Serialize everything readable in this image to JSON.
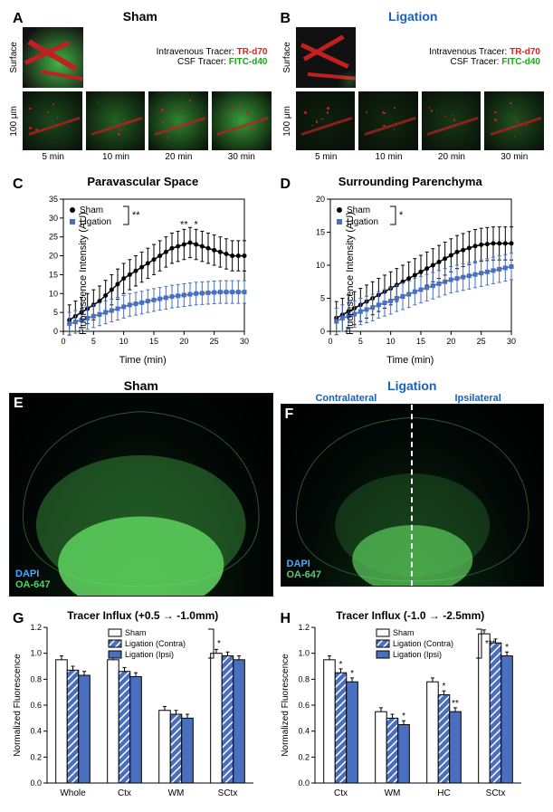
{
  "A": {
    "label": "A",
    "title": "Sham",
    "rows": [
      "Surface",
      "100 μm"
    ],
    "tracers": {
      "iv_label": "Intravenous Tracer:",
      "iv_val": "TR-d70",
      "csf_label": "CSF Tracer:",
      "csf_val": "FITC-d40"
    },
    "times": [
      "5 min",
      "10 min",
      "20 min",
      "30 min"
    ]
  },
  "B": {
    "label": "B",
    "title": "Ligation",
    "rows": [
      "Surface",
      "100 μm"
    ],
    "tracers": {
      "iv_label": "Intravenous Tracer:",
      "iv_val": "TR-d70",
      "csf_label": "CSF Tracer:",
      "csf_val": "FITC-d40"
    },
    "times": [
      "5 min",
      "10 min",
      "20 min",
      "30 min"
    ]
  },
  "C": {
    "label": "C",
    "title": "Paravascular Space",
    "ylabel": "Fluorescence Intensity (AU)",
    "xlabel": "Time (min)",
    "ylim": [
      0,
      35
    ],
    "ytick_step": 5,
    "xlim": [
      0,
      30
    ],
    "xtick_step": 5,
    "legend": [
      "Sham",
      "Ligation"
    ],
    "bracket_sig": "**",
    "point_sigs": [
      {
        "x": 20,
        "s": "**"
      },
      {
        "x": 22,
        "s": "*"
      }
    ],
    "sham": {
      "x": [
        1,
        2,
        3,
        4,
        5,
        6,
        7,
        8,
        9,
        10,
        11,
        12,
        13,
        14,
        15,
        16,
        17,
        18,
        19,
        20,
        21,
        22,
        23,
        24,
        25,
        26,
        27,
        28,
        29,
        30
      ],
      "y": [
        3,
        4,
        5,
        6,
        7,
        8,
        9.5,
        11,
        12.5,
        14,
        15,
        16,
        17,
        18,
        19,
        20,
        21,
        22,
        22.5,
        23,
        23.5,
        23,
        22.5,
        22,
        21.5,
        21,
        20.5,
        20,
        20,
        20
      ],
      "err": 4,
      "color": "#000000"
    },
    "ligation": {
      "x": [
        1,
        2,
        3,
        4,
        5,
        6,
        7,
        8,
        9,
        10,
        11,
        12,
        13,
        14,
        15,
        16,
        17,
        18,
        19,
        20,
        21,
        22,
        23,
        24,
        25,
        26,
        27,
        28,
        29,
        30
      ],
      "y": [
        2,
        2.5,
        3,
        3.5,
        4,
        4.5,
        5,
        5.5,
        6,
        6.5,
        7,
        7.3,
        7.6,
        8,
        8.3,
        8.6,
        8.9,
        9.2,
        9.4,
        9.6,
        9.8,
        10,
        10.1,
        10.2,
        10.3,
        10.4,
        10.4,
        10.4,
        10.4,
        10.4
      ],
      "err": 3,
      "color": "#4a6fbf"
    }
  },
  "D": {
    "label": "D",
    "title": "Surrounding Parenchyma",
    "ylabel": "Fluorescence Intensity (AU)",
    "xlabel": "Time (min)",
    "ylim": [
      0,
      20
    ],
    "ytick_step": 5,
    "xlim": [
      0,
      30
    ],
    "xtick_step": 5,
    "legend": [
      "Sham",
      "Ligation"
    ],
    "bracket_sig": "*",
    "sham": {
      "x": [
        1,
        2,
        3,
        4,
        5,
        6,
        7,
        8,
        9,
        10,
        11,
        12,
        13,
        14,
        15,
        16,
        17,
        18,
        19,
        20,
        21,
        22,
        23,
        24,
        25,
        26,
        27,
        28,
        29,
        30
      ],
      "y": [
        2,
        2.5,
        3,
        3.5,
        4,
        4.5,
        5,
        5.5,
        6,
        6.5,
        7,
        7.5,
        8,
        8.5,
        9,
        9.5,
        10,
        10.5,
        11,
        11.5,
        12,
        12.3,
        12.6,
        12.9,
        13.1,
        13.2,
        13.3,
        13.3,
        13.3,
        13.3
      ],
      "err": 2.5,
      "color": "#000000"
    },
    "ligation": {
      "x": [
        1,
        2,
        3,
        4,
        5,
        6,
        7,
        8,
        9,
        10,
        11,
        12,
        13,
        14,
        15,
        16,
        17,
        18,
        19,
        20,
        21,
        22,
        23,
        24,
        25,
        26,
        27,
        28,
        29,
        30
      ],
      "y": [
        1.5,
        2,
        2.3,
        2.6,
        3,
        3.3,
        3.6,
        4,
        4.3,
        4.6,
        5,
        5.3,
        5.6,
        6,
        6.3,
        6.6,
        6.9,
        7.2,
        7.5,
        7.8,
        8,
        8.2,
        8.4,
        8.6,
        8.8,
        9,
        9.2,
        9.4,
        9.6,
        9.8
      ],
      "err": 2,
      "color": "#4a6fbf"
    }
  },
  "E": {
    "label": "E",
    "title": "Sham",
    "stain1": "DAPI",
    "stain2": "OA-647"
  },
  "F": {
    "label": "F",
    "title": "Ligation",
    "left_sub": "Contralateral",
    "right_sub": "Ipsilateral",
    "stain1": "DAPI",
    "stain2": "OA-647"
  },
  "G": {
    "label": "G",
    "title": "Tracer Influx (+0.5 → -1.0mm)",
    "ylabel": "Normalized Fluorescence",
    "ylim": [
      0.0,
      1.2
    ],
    "ytick_step": 0.2,
    "legend": [
      "Sham",
      "Ligation (Contra)",
      "Ligation (Ipsi)"
    ],
    "bracket_sig": "*",
    "categories": [
      "Whole",
      "Ctx",
      "WM",
      "SCtx"
    ],
    "sham": [
      0.95,
      0.95,
      0.56,
      1.0
    ],
    "contra": [
      0.87,
      0.86,
      0.53,
      0.98
    ],
    "ipsi": [
      0.83,
      0.82,
      0.5,
      0.95
    ],
    "err": 0.03,
    "sigs": [
      [],
      [],
      [],
      []
    ],
    "colors": {
      "sham": "#ffffff",
      "contra": "#4a6fbf",
      "ipsi": "#4a6fbf",
      "hatch": "#ffffff"
    }
  },
  "H": {
    "label": "H",
    "title": "Tracer Influx (-1.0 → -2.5mm)",
    "ylabel": "Normalized Fluorescence",
    "ylim": [
      0.0,
      1.2
    ],
    "ytick_step": 0.2,
    "legend": [
      "Sham",
      "Ligation (Contra)",
      "Ligation (Ipsi)"
    ],
    "bracket_sig": "***",
    "categories": [
      "Ctx",
      "WM",
      "HC",
      "SCtx"
    ],
    "sham": [
      0.95,
      0.55,
      0.78,
      1.15
    ],
    "contra": [
      0.85,
      0.5,
      0.68,
      1.08
    ],
    "ipsi": [
      0.78,
      0.45,
      0.55,
      0.98
    ],
    "err": 0.03,
    "sigs": [
      [
        "",
        "*",
        "*"
      ],
      [
        "",
        "",
        "*"
      ],
      [
        "",
        "*",
        "**"
      ],
      [
        "",
        "",
        "*"
      ]
    ],
    "colors": {
      "sham": "#ffffff",
      "contra": "#4a6fbf",
      "ipsi": "#4a6fbf",
      "hatch": "#ffffff"
    }
  }
}
